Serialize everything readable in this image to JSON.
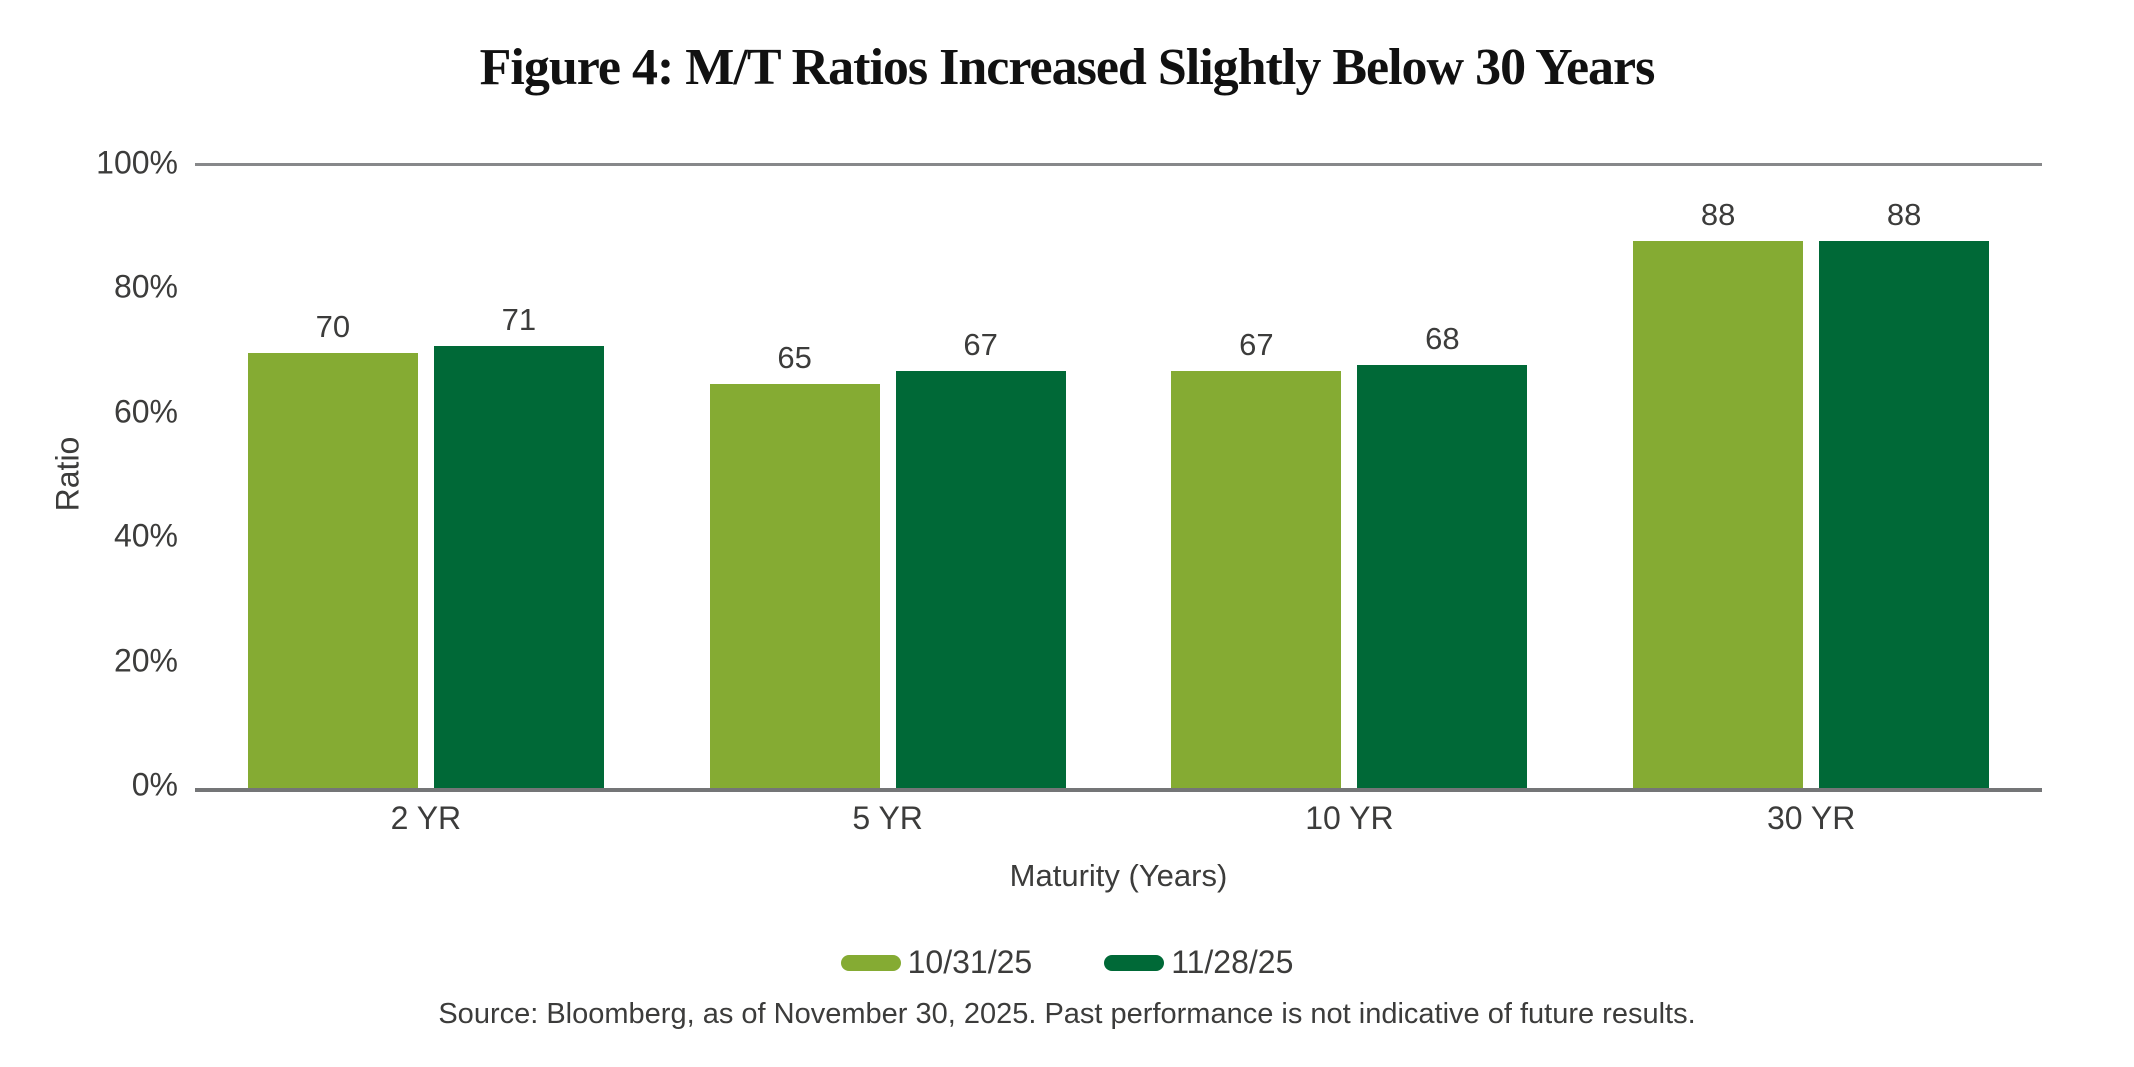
{
  "title": "Figure 4: M/T Ratios Increased Slightly Below 30 Years",
  "chart_data": {
    "type": "bar",
    "categories": [
      "2 YR",
      "5 YR",
      "10 YR",
      "30 YR"
    ],
    "series": [
      {
        "name": "10/31/25",
        "color": "#85AB33",
        "values": [
          70,
          65,
          67,
          88
        ]
      },
      {
        "name": "11/28/25",
        "color": "#006937",
        "values": [
          71,
          67,
          68,
          88
        ]
      }
    ],
    "title": "Figure 4: M/T Ratios Increased Slightly Below 30 Years",
    "xlabel": "Maturity (Years)",
    "ylabel": "Ratio",
    "ylim": [
      0,
      100
    ],
    "ytick_values": [
      0,
      20,
      40,
      60,
      80,
      100
    ],
    "ytick_labels": [
      "0%",
      "20%",
      "40%",
      "60%",
      "80%",
      "100%"
    ],
    "grid": "top gridline at 100% and baseline at 0% only",
    "legend_position": "bottom-center",
    "bar_value_labels_shown": true
  },
  "source": "Source: Bloomberg, as of November 30, 2025. Past performance is not indicative of future results.",
  "colors": {
    "series_light_green": "#85AB33",
    "series_dark_green": "#006937",
    "axis_line": "#747577",
    "top_gridline": "#87888a",
    "text": "#3c3c3b",
    "title_text": "#111111"
  }
}
